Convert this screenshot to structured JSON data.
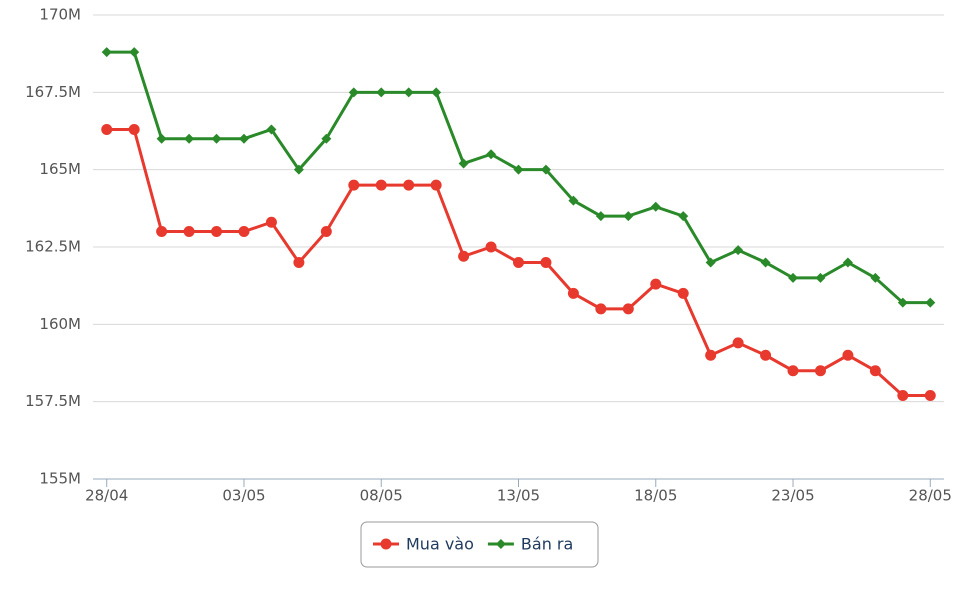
{
  "chart_data": {
    "type": "line",
    "categories": [
      "28/04",
      null,
      null,
      null,
      null,
      "03/05",
      null,
      null,
      null,
      null,
      "08/05",
      null,
      null,
      null,
      null,
      "13/05",
      null,
      null,
      null,
      null,
      "18/05",
      null,
      null,
      null,
      null,
      "23/05",
      null,
      null,
      null,
      null,
      "28/05"
    ],
    "series": [
      {
        "name": "Mua vào",
        "color": "#e8392e",
        "marker": "circle",
        "values": [
          166300000,
          166300000,
          163000000,
          163000000,
          163000000,
          163000000,
          163300000,
          162000000,
          163000000,
          164500000,
          164500000,
          164500000,
          164500000,
          162200000,
          162500000,
          162000000,
          162000000,
          161000000,
          160500000,
          160500000,
          161300000,
          161000000,
          159000000,
          159400000,
          159000000,
          158500000,
          158500000,
          159000000,
          158500000,
          157700000,
          157700000
        ]
      },
      {
        "name": "Bán ra",
        "color": "#2a8a2a",
        "marker": "diamond",
        "values": [
          168800000,
          168800000,
          166000000,
          166000000,
          166000000,
          166000000,
          166300000,
          165000000,
          166000000,
          167500000,
          167500000,
          167500000,
          167500000,
          165200000,
          165500000,
          165000000,
          165000000,
          164000000,
          163500000,
          163500000,
          163800000,
          163500000,
          162000000,
          162400000,
          162000000,
          161500000,
          161500000,
          162000000,
          161500000,
          160700000,
          160700000
        ]
      }
    ],
    "ylim": [
      155000000,
      170000000
    ],
    "yticks": [
      {
        "value": 155000000,
        "label": "155M"
      },
      {
        "value": 157500000,
        "label": "157.5M"
      },
      {
        "value": 160000000,
        "label": "160M"
      },
      {
        "value": 162500000,
        "label": "162.5M"
      },
      {
        "value": 165000000,
        "label": "165M"
      },
      {
        "value": 167500000,
        "label": "167.5M"
      },
      {
        "value": 170000000,
        "label": "170M"
      }
    ],
    "grid": true
  }
}
